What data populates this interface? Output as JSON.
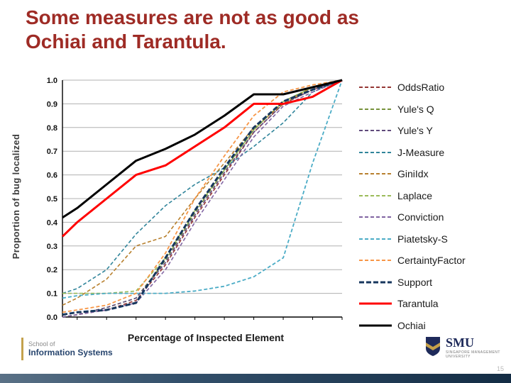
{
  "slide": {
    "title_line1": "Some measures are not as good as",
    "title_line2": "Ochiai and Tarantula.",
    "title_color": "#9E2B25",
    "page_number": "15"
  },
  "footer": {
    "school_of": "School of",
    "school_name": "Information Systems",
    "smu_acronym": "SMU",
    "smu_name": "SINGAPORE MANAGEMENT UNIVERSITY"
  },
  "chart_data": {
    "type": "line",
    "title": "",
    "xlabel": "Percentage of Inspected Element",
    "ylabel": "Proportion of bug localized",
    "xlim": [
      0.05,
      1.0
    ],
    "ylim": [
      0.0,
      1.0
    ],
    "x_ticks": [
      "0.1",
      "0.2",
      "0.3",
      "0.4",
      "0.5",
      "0.6",
      "0.7",
      "0.8",
      "0.9",
      "1.0"
    ],
    "y_ticks": [
      "0.0",
      "0.1",
      "0.2",
      "0.3",
      "0.4",
      "0.5",
      "0.6",
      "0.7",
      "0.8",
      "0.9",
      "1.0"
    ],
    "grid": "horizontal",
    "legend_position": "right",
    "x": [
      0.05,
      0.1,
      0.2,
      0.3,
      0.4,
      0.5,
      0.6,
      0.7,
      0.8,
      0.9,
      1.0
    ],
    "series": [
      {
        "name": "OddsRatio",
        "color": "#953735",
        "dash": "5,3",
        "width": 1.6,
        "values": [
          0.0,
          0.01,
          0.03,
          0.07,
          0.22,
          0.42,
          0.6,
          0.78,
          0.9,
          0.96,
          1.0
        ]
      },
      {
        "name": "Yule's Q",
        "color": "#77933C",
        "dash": "5,3",
        "width": 1.6,
        "values": [
          0.0,
          0.01,
          0.04,
          0.08,
          0.24,
          0.44,
          0.62,
          0.79,
          0.91,
          0.97,
          1.0
        ]
      },
      {
        "name": "Yule's Y",
        "color": "#604A7B",
        "dash": "5,3",
        "width": 1.6,
        "values": [
          0.0,
          0.01,
          0.04,
          0.08,
          0.23,
          0.43,
          0.61,
          0.78,
          0.9,
          0.96,
          1.0
        ]
      },
      {
        "name": "J-Measure",
        "color": "#31859B",
        "dash": "5,3",
        "width": 1.6,
        "values": [
          0.1,
          0.12,
          0.2,
          0.35,
          0.47,
          0.56,
          0.63,
          0.72,
          0.82,
          0.95,
          1.0
        ]
      },
      {
        "name": "GiniIdx",
        "color": "#B8802E",
        "dash": "5,3",
        "width": 1.6,
        "values": [
          0.05,
          0.08,
          0.16,
          0.3,
          0.34,
          0.5,
          0.65,
          0.8,
          0.9,
          0.97,
          1.0
        ]
      },
      {
        "name": "Laplace",
        "color": "#9BBB59",
        "dash": "5,3",
        "width": 1.6,
        "values": [
          0.1,
          0.1,
          0.1,
          0.11,
          0.25,
          0.45,
          0.62,
          0.79,
          0.91,
          0.97,
          1.0
        ]
      },
      {
        "name": "Conviction",
        "color": "#8064A2",
        "dash": "5,3",
        "width": 1.6,
        "values": [
          0.0,
          0.01,
          0.03,
          0.06,
          0.2,
          0.4,
          0.58,
          0.76,
          0.89,
          0.95,
          1.0
        ]
      },
      {
        "name": "Piatetsky-S",
        "color": "#4BACC6",
        "dash": "5,3",
        "width": 1.8,
        "values": [
          0.08,
          0.09,
          0.1,
          0.1,
          0.1,
          0.11,
          0.13,
          0.17,
          0.25,
          0.65,
          1.0
        ]
      },
      {
        "name": "CertaintyFactor",
        "color": "#F79646",
        "dash": "5,3",
        "width": 1.8,
        "values": [
          0.02,
          0.03,
          0.05,
          0.1,
          0.27,
          0.5,
          0.68,
          0.85,
          0.95,
          0.98,
          1.0
        ]
      },
      {
        "name": "Support",
        "color": "#17375E",
        "dash": "7,3",
        "width": 3,
        "values": [
          0.01,
          0.02,
          0.03,
          0.06,
          0.25,
          0.45,
          0.63,
          0.8,
          0.91,
          0.96,
          1.0
        ]
      },
      {
        "name": "Tarantula",
        "color": "#FF0000",
        "dash": "",
        "width": 3,
        "values": [
          0.34,
          0.4,
          0.5,
          0.6,
          0.64,
          0.72,
          0.8,
          0.9,
          0.9,
          0.93,
          1.0
        ]
      },
      {
        "name": "Ochiai",
        "color": "#000000",
        "dash": "",
        "width": 3,
        "values": [
          0.42,
          0.46,
          0.56,
          0.66,
          0.71,
          0.77,
          0.85,
          0.94,
          0.94,
          0.97,
          1.0
        ]
      }
    ]
  }
}
